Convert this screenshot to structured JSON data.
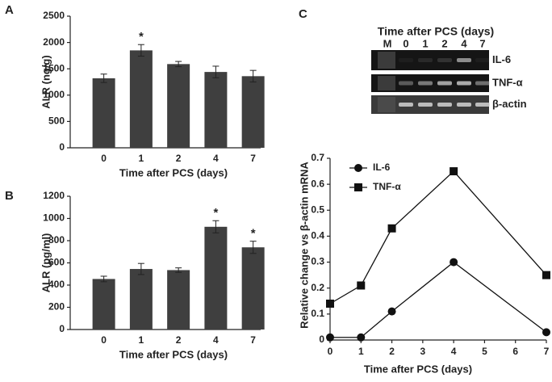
{
  "chart_data": [
    {
      "type": "bar",
      "panel": "A",
      "y_label": "ALR (ng/g)",
      "x_label": "Time after PCS (days)",
      "categories": [
        "0",
        "1",
        "2",
        "4",
        "7"
      ],
      "values": [
        1320,
        1850,
        1590,
        1440,
        1360
      ],
      "errors": [
        80,
        110,
        50,
        110,
        110
      ],
      "value_annotations": [
        null,
        "*",
        null,
        null,
        null
      ],
      "color": "#3f3f3f",
      "ylim": [
        0,
        2500
      ],
      "yticks": [
        0,
        500,
        1000,
        1500,
        2000,
        2500
      ]
    },
    {
      "type": "bar",
      "panel": "B",
      "y_label": "ALR (pg/ml)",
      "x_label": "Time after PCS (days)",
      "categories": [
        "0",
        "1",
        "2",
        "4",
        "7"
      ],
      "values": [
        455,
        545,
        535,
        925,
        740
      ],
      "errors": [
        25,
        50,
        20,
        55,
        55
      ],
      "value_annotations": [
        null,
        null,
        null,
        "*",
        "*"
      ],
      "color": "#3f3f3f",
      "ylim": [
        0,
        1200
      ],
      "yticks": [
        0,
        200,
        400,
        600,
        800,
        1000,
        1200
      ]
    },
    {
      "type": "gel",
      "panel": "C",
      "title": "Time after PCS (days)",
      "lanes": [
        "M",
        "0",
        "1",
        "2",
        "4",
        "7"
      ],
      "bands": [
        "IL-6",
        "TNF-α",
        "β-actin"
      ]
    },
    {
      "type": "line",
      "y_label": "Relative change vs β-actin mRNA",
      "x_label": "Time after PCS (days)",
      "x": [
        0,
        1,
        2,
        4,
        7
      ],
      "series": [
        {
          "name": "IL-6",
          "color": "#111111",
          "marker": "circle",
          "values": [
            0.01,
            0.01,
            0.11,
            0.3,
            0.03
          ]
        },
        {
          "name": "TNF-α",
          "color": "#111111",
          "marker": "square",
          "values": [
            0.14,
            0.21,
            0.43,
            0.65,
            0.25
          ]
        }
      ],
      "xlim": [
        0,
        7
      ],
      "xticks": [
        0,
        1,
        2,
        3,
        4,
        5,
        6,
        7
      ],
      "ylim": [
        0,
        0.7
      ],
      "yticks": [
        0,
        0.1,
        0.2,
        0.3,
        0.4,
        0.5,
        0.6,
        0.7
      ]
    }
  ]
}
